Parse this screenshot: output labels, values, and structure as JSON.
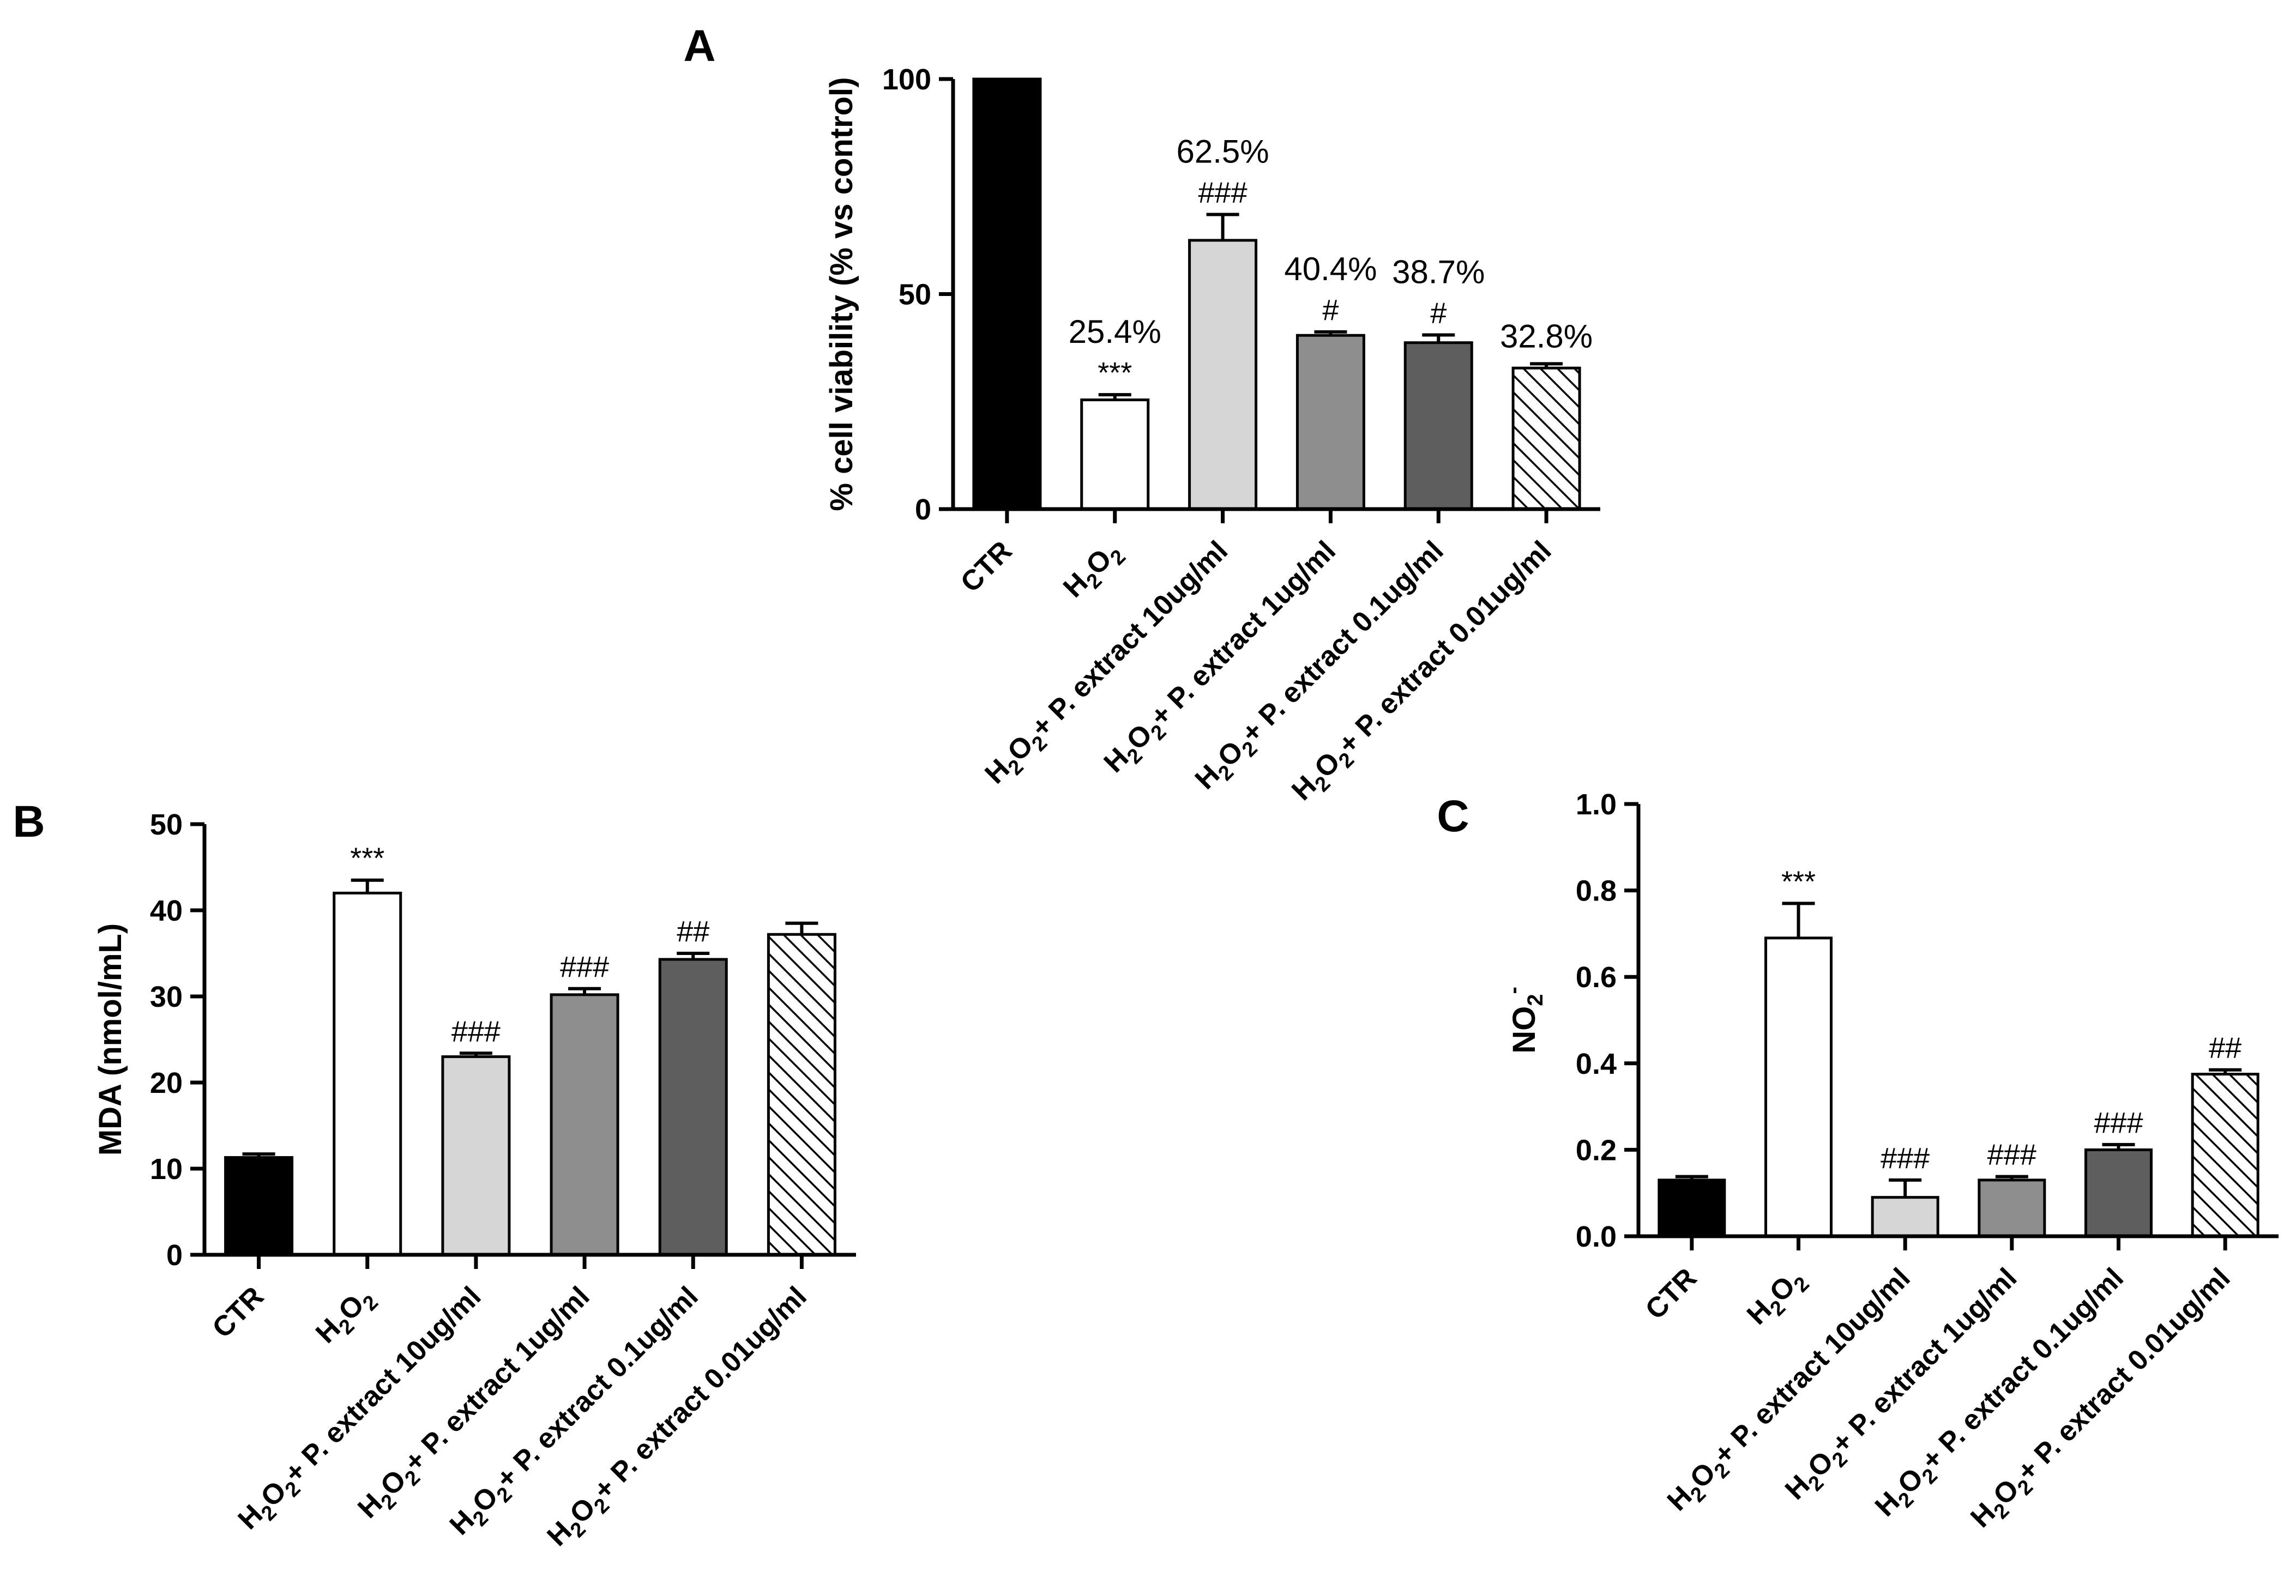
{
  "patterns": {
    "hatch_color": "#000000"
  },
  "chart_data": [
    {
      "panel": "A",
      "type": "bar",
      "ylabel": "% cell viability (% vs control)",
      "ylim": [
        0,
        100
      ],
      "yticks": [
        0,
        50,
        100
      ],
      "categories": [
        {
          "main": "CTR",
          "sub": "",
          "rest": ""
        },
        {
          "main": "H",
          "sub": "2",
          "rest": "O2"
        },
        {
          "main": "H",
          "sub": "2",
          "rest": "O2+ P. extract 10ug/ml"
        },
        {
          "main": "H",
          "sub": "2",
          "rest": "O2+ P. extract 1ug/ml"
        },
        {
          "main": "H",
          "sub": "2",
          "rest": "O2+ P. extract 0.1ug/ml"
        },
        {
          "main": "H",
          "sub": "2",
          "rest": "O2+ P. extract 0.01ug/ml"
        }
      ],
      "values": [
        100,
        25.4,
        62.5,
        40.4,
        38.7,
        32.8
      ],
      "errors": [
        0,
        1.2,
        6.0,
        0.8,
        1.8,
        1.0
      ],
      "fills": [
        "#000000",
        "#ffffff",
        "#d6d6d6",
        "#8e8e8e",
        "#5e5e5e",
        "hatch"
      ],
      "value_labels": [
        "",
        "25.4%",
        "62.5%",
        "40.4%",
        "38.7%",
        "32.8%"
      ],
      "significance": [
        "",
        "***",
        "###",
        "#",
        "#",
        ""
      ]
    },
    {
      "panel": "B",
      "type": "bar",
      "ylabel": "MDA (nmol/mL)",
      "ylim": [
        0,
        50
      ],
      "yticks": [
        0,
        10,
        20,
        30,
        40,
        50
      ],
      "categories": [
        {
          "main": "CTR",
          "sub": "",
          "rest": ""
        },
        {
          "main": "H",
          "sub": "2",
          "rest": "O2"
        },
        {
          "main": "H",
          "sub": "2",
          "rest": "O2+ P. extract 10ug/ml"
        },
        {
          "main": "H",
          "sub": "2",
          "rest": "O2+ P. extract 1ug/ml"
        },
        {
          "main": "H",
          "sub": "2",
          "rest": "O2+ P. extract 0.1ug/ml"
        },
        {
          "main": "H",
          "sub": "2",
          "rest": "O2+ P. extract 0.01ug/ml"
        }
      ],
      "values": [
        11.3,
        42.0,
        23.0,
        30.2,
        34.3,
        37.2
      ],
      "errors": [
        0.4,
        1.5,
        0.4,
        0.7,
        0.7,
        1.3
      ],
      "fills": [
        "#000000",
        "#ffffff",
        "#d6d6d6",
        "#8e8e8e",
        "#5e5e5e",
        "hatch"
      ],
      "value_labels": [
        "",
        "",
        "",
        "",
        "",
        ""
      ],
      "significance": [
        "",
        "***",
        "###",
        "###",
        "##",
        ""
      ]
    },
    {
      "panel": "C",
      "type": "bar",
      "ylabel": "NO2-",
      "ylim": [
        0,
        1.0
      ],
      "yticks": [
        "0.0",
        "0.2",
        "0.4",
        "0.6",
        "0.8",
        "1.0"
      ],
      "categories": [
        {
          "main": "CTR",
          "sub": "",
          "rest": ""
        },
        {
          "main": "H",
          "sub": "2",
          "rest": "O2"
        },
        {
          "main": "H",
          "sub": "2",
          "rest": "O2+ P. extract 10ug/ml"
        },
        {
          "main": "H",
          "sub": "2",
          "rest": "O2+ P. extract 1ug/ml"
        },
        {
          "main": "H",
          "sub": "2",
          "rest": "O2+ P. extract 0.1ug/ml"
        },
        {
          "main": "H",
          "sub": "2",
          "rest": "O2+ P. extract 0.01ug/ml"
        }
      ],
      "values": [
        0.13,
        0.69,
        0.09,
        0.13,
        0.2,
        0.375
      ],
      "errors": [
        0.008,
        0.08,
        0.04,
        0.008,
        0.012,
        0.01
      ],
      "fills": [
        "#000000",
        "#ffffff",
        "#d6d6d6",
        "#8e8e8e",
        "#5e5e5e",
        "hatch"
      ],
      "value_labels": [
        "",
        "",
        "",
        "",
        "",
        ""
      ],
      "significance": [
        "",
        "***",
        "###",
        "###",
        "###",
        "##"
      ]
    }
  ]
}
